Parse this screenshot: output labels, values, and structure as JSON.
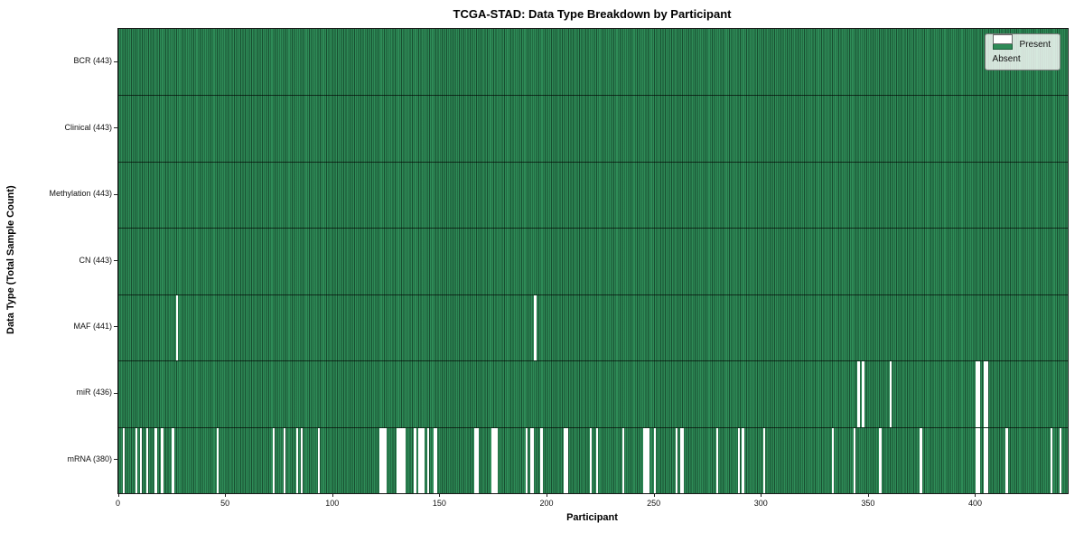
{
  "title": "TCGA-STAD: Data Type Breakdown by Participant",
  "chart_data": {
    "type": "heatmap",
    "title": "TCGA-STAD: Data Type Breakdown by Participant",
    "xlabel": "Participant",
    "ylabel": "Data Type (Total Sample Count)",
    "n_participants": 443,
    "x_ticks": [
      0,
      50,
      100,
      150,
      200,
      250,
      300,
      350,
      400
    ],
    "grid": false,
    "legend_position": "upper right",
    "legend": {
      "entries": [
        {
          "label": "Present",
          "color": "#2e8b57"
        },
        {
          "label": "Absent",
          "color": "#ffffff"
        }
      ]
    },
    "colors": {
      "present": "#2e8b57",
      "absent": "#ffffff",
      "column_edge": "rgba(6,28,16,0.55)",
      "row_boundary": "rgba(0,0,0,0.65)"
    },
    "rows": [
      {
        "name": "BCR",
        "label": "BCR (443)",
        "total": 443,
        "absent_count": 0,
        "absent_participants": []
      },
      {
        "name": "Clinical",
        "label": "Clinical (443)",
        "total": 443,
        "absent_count": 0,
        "absent_participants": []
      },
      {
        "name": "Methylation",
        "label": "Methylation (443)",
        "total": 443,
        "absent_count": 0,
        "absent_participants": []
      },
      {
        "name": "CN",
        "label": "CN (443)",
        "total": 443,
        "absent_count": 0,
        "absent_participants": []
      },
      {
        "name": "MAF",
        "label": "MAF (441)",
        "total": 441,
        "absent_count": 2,
        "absent_participants": [
          27,
          194
        ]
      },
      {
        "name": "miR",
        "label": "miR (436)",
        "total": 436,
        "absent_count": 7,
        "absent_participants": [
          345,
          347,
          360,
          400,
          401,
          404,
          405
        ]
      },
      {
        "name": "mRNA",
        "label": "mRNA (380)",
        "total": 380,
        "absent_count": 63,
        "absent_participants": [
          2,
          8,
          10,
          13,
          17,
          20,
          25,
          46,
          72,
          77,
          83,
          85,
          93,
          122,
          123,
          124,
          130,
          131,
          132,
          133,
          138,
          140,
          141,
          142,
          144,
          147,
          148,
          166,
          167,
          174,
          175,
          176,
          190,
          192,
          193,
          197,
          208,
          209,
          220,
          223,
          235,
          245,
          246,
          247,
          250,
          260,
          262,
          263,
          279,
          289,
          291,
          301,
          333,
          343,
          355,
          374,
          400,
          401,
          404,
          405,
          414,
          435,
          439
        ]
      }
    ]
  }
}
